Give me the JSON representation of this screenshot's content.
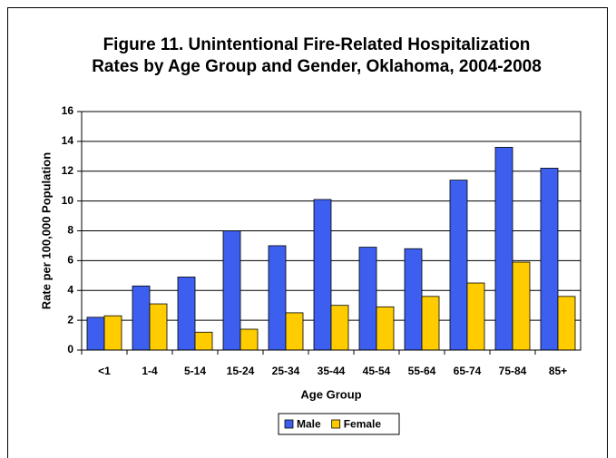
{
  "chart_data": {
    "type": "bar",
    "title": [
      "Figure 11. Unintentional Fire-Related Hospitalization",
      "Rates by Age Group and Gender, Oklahoma, 2004-2008"
    ],
    "x_label": "Age Group",
    "y_label": "Rate per 100,000 Population",
    "categories": [
      "<1",
      "1-4",
      "5-14",
      "15-24",
      "25-34",
      "35-44",
      "45-54",
      "55-64",
      "65-74",
      "75-84",
      "85+"
    ],
    "series": [
      {
        "name": "Male",
        "color": "#3d5ff0",
        "values": [
          2.2,
          4.3,
          4.9,
          8.0,
          7.0,
          10.1,
          6.9,
          6.8,
          11.4,
          13.6,
          12.2
        ]
      },
      {
        "name": "Female",
        "color": "#ffcc00",
        "values": [
          2.3,
          3.1,
          1.2,
          1.4,
          2.5,
          3.0,
          2.9,
          3.6,
          4.5,
          5.9,
          3.6
        ]
      }
    ],
    "ylim": [
      0,
      16
    ],
    "yticks": [
      0,
      2,
      4,
      6,
      8,
      10,
      12,
      14,
      16
    ],
    "grid": true,
    "legend": "bottom"
  }
}
